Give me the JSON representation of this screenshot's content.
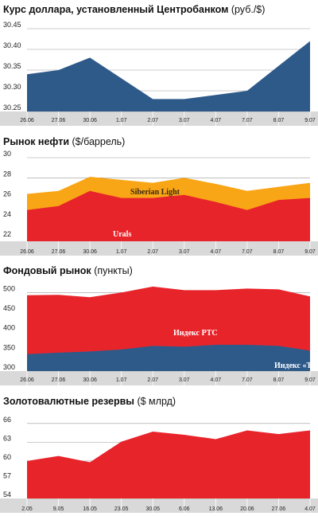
{
  "colors": {
    "blue": "#2e5a8a",
    "red": "#e8242b",
    "orange": "#f8a516",
    "band": "#d9d9d9",
    "grid": "#9a9a9a"
  },
  "chart_data": [
    {
      "id": "usd",
      "type": "area",
      "title": "Курс доллара, установленный Центробанком",
      "unit": "(руб./$)",
      "categories": [
        "26.06",
        "27.06",
        "30.06",
        "1.07",
        "2.07",
        "3.07",
        "4.07",
        "7.07",
        "8.07",
        "9.07"
      ],
      "yticks": [
        "30.45",
        "30.40",
        "30.35",
        "30.30",
        "30.25"
      ],
      "ylim": [
        30.25,
        30.45
      ],
      "series": [
        {
          "values": [
            30.34,
            30.35,
            30.38,
            30.33,
            30.28,
            30.28,
            30.29,
            30.3,
            30.36,
            30.42
          ],
          "color": "#2e5a8a"
        }
      ]
    },
    {
      "id": "oil",
      "type": "area",
      "title": "Рынок нефти",
      "unit": "($/баррель)",
      "categories": [
        "26.06",
        "27.06",
        "30.06",
        "1.07",
        "2.07",
        "3.07",
        "4.07",
        "7.07",
        "8.07",
        "9.07"
      ],
      "yticks": [
        "30",
        "28",
        "26",
        "24",
        "22"
      ],
      "ylim": [
        21.7,
        30
      ],
      "series": [
        {
          "name": "Urals",
          "values": [
            24.8,
            25.2,
            26.7,
            26.0,
            26.0,
            26.3,
            25.6,
            24.8,
            25.8,
            26.0
          ],
          "color": "#e8242b"
        },
        {
          "name": "Siberian Light",
          "values": [
            26.4,
            26.7,
            28.1,
            27.8,
            27.5,
            28.0,
            27.4,
            26.7,
            27.1,
            27.5
          ],
          "color": "#f8a516"
        }
      ]
    },
    {
      "id": "stock",
      "type": "area",
      "title": "Фондовый рынок",
      "unit": "(пункты)",
      "categories": [
        "26.06",
        "27.06",
        "30.06",
        "1.07",
        "2.07",
        "3.07",
        "4.07",
        "7.07",
        "8.07",
        "9.07"
      ],
      "yticks": [
        "500",
        "450",
        "400",
        "350",
        "300"
      ],
      "ylim": [
        300,
        525
      ],
      "series": [
        {
          "name": "Индекс «Ъ»",
          "values": [
            343,
            347,
            350,
            355,
            364,
            362,
            367,
            367,
            364,
            352
          ],
          "color": "#2e5a8a"
        },
        {
          "name": "Индекс РТС",
          "values": [
            493,
            494,
            488,
            500,
            515,
            506,
            506,
            510,
            508,
            490
          ],
          "color": "#e8242b"
        }
      ]
    },
    {
      "id": "reserves",
      "type": "area",
      "title": "Золотовалютные резервы",
      "unit": "($ млрд)",
      "categories": [
        "2.05",
        "9.05",
        "16.05",
        "23.05",
        "30.05",
        "6.06",
        "13.06",
        "20.06",
        "27.06",
        "4.07"
      ],
      "yticks": [
        "66",
        "63",
        "60",
        "57",
        "54"
      ],
      "ylim": [
        54,
        67
      ],
      "series": [
        {
          "values": [
            60.0,
            60.8,
            59.8,
            63.1,
            64.7,
            64.2,
            63.5,
            64.9,
            64.3,
            64.9
          ],
          "color": "#e8242b"
        }
      ]
    }
  ]
}
